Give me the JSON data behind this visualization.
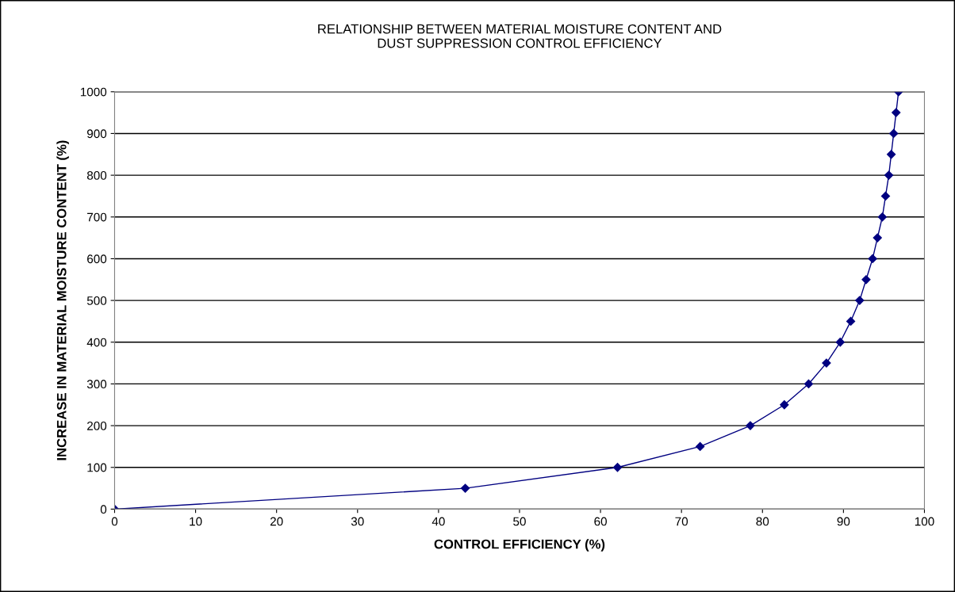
{
  "chart_data": {
    "type": "line",
    "title": "RELATIONSHIP BETWEEN MATERIAL MOISTURE CONTENT AND\nDUST SUPPRESSION CONTROL EFFICIENCY",
    "xlabel": "CONTROL EFFICIENCY (%)",
    "ylabel": "INCREASE IN MATERIAL MOISTURE CONTENT (%)",
    "x": [
      0,
      43.3,
      62.1,
      72.3,
      78.5,
      82.7,
      85.7,
      87.9,
      89.6,
      90.9,
      92.0,
      92.8,
      93.6,
      94.2,
      94.8,
      95.2,
      95.6,
      95.9,
      96.2,
      96.5,
      96.8
    ],
    "series": [
      {
        "color": "#000080",
        "values": [
          0,
          50,
          100,
          150,
          200,
          250,
          300,
          350,
          400,
          450,
          500,
          550,
          600,
          650,
          700,
          750,
          800,
          850,
          900,
          950,
          1000
        ]
      }
    ],
    "xlim": [
      0,
      100
    ],
    "xticks": [
      0,
      10,
      20,
      30,
      40,
      50,
      60,
      70,
      80,
      90,
      100
    ],
    "ylim": [
      0,
      1000
    ],
    "yticks": [
      0,
      100,
      200,
      300,
      400,
      500,
      600,
      700,
      800,
      900,
      1000
    ],
    "grid": "y",
    "marker": "diamond",
    "line_style": "solid",
    "legend": false
  }
}
